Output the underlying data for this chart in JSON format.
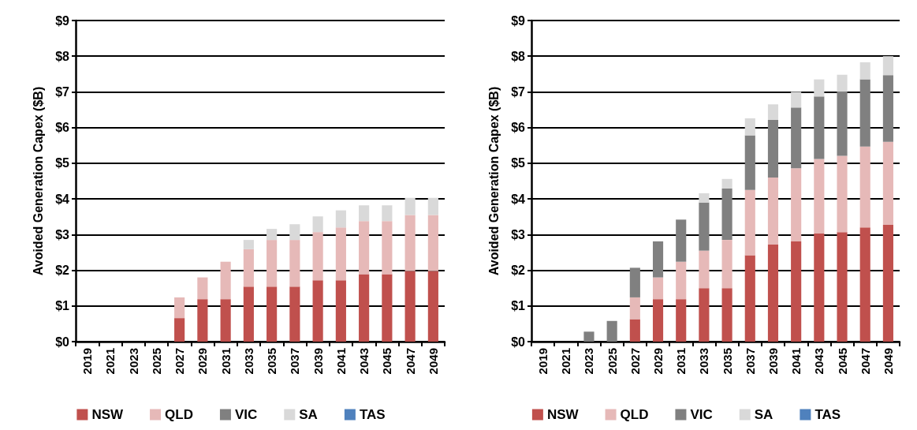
{
  "chart_data": [
    {
      "type": "bar",
      "stacked": true,
      "ylabel": "Avoided Generation Capex ($B)",
      "categories": [
        "2019",
        "2021",
        "2023",
        "2025",
        "2027",
        "2029",
        "2031",
        "2033",
        "2035",
        "2037",
        "2039",
        "2041",
        "2043",
        "2045",
        "2047",
        "2049"
      ],
      "series": [
        {
          "name": "NSW",
          "color": "#c0504d",
          "values": [
            0,
            0,
            0,
            0,
            0.66,
            1.19,
            1.19,
            1.54,
            1.54,
            1.54,
            1.72,
            1.72,
            1.89,
            1.89,
            1.98,
            1.98
          ]
        },
        {
          "name": "QLD",
          "color": "#e6b9b8",
          "values": [
            0,
            0,
            0,
            0,
            0.58,
            0.61,
            1.05,
            1.05,
            1.31,
            1.31,
            1.35,
            1.48,
            1.49,
            1.49,
            1.57,
            1.57
          ]
        },
        {
          "name": "VIC",
          "color": "#808080",
          "values": [
            0,
            0,
            0,
            0,
            0,
            0,
            0,
            0,
            0,
            0,
            0,
            0,
            0,
            0,
            0,
            0
          ]
        },
        {
          "name": "SA",
          "color": "#d9d9d9",
          "values": [
            0,
            0,
            0,
            0,
            0,
            0,
            0,
            0.26,
            0.31,
            0.44,
            0.44,
            0.48,
            0.44,
            0.44,
            0.48,
            0.48
          ]
        },
        {
          "name": "TAS",
          "color": "#4f81bd",
          "values": [
            0,
            0,
            0,
            0,
            0,
            0,
            0,
            0,
            0,
            0,
            0,
            0,
            0,
            0,
            0,
            0
          ]
        }
      ],
      "ylim": [
        0,
        9
      ],
      "yticks": [
        {
          "value": 0,
          "label": "$0"
        },
        {
          "value": 1,
          "label": "$1"
        },
        {
          "value": 2,
          "label": "$2"
        },
        {
          "value": 3,
          "label": "$3"
        },
        {
          "value": 4,
          "label": "$4"
        },
        {
          "value": 5,
          "label": "$5"
        },
        {
          "value": 6,
          "label": "$6"
        },
        {
          "value": 7,
          "label": "$7"
        },
        {
          "value": 8,
          "label": "$8"
        },
        {
          "value": 9,
          "label": "$9"
        }
      ],
      "grid": "y",
      "legend": "bottom"
    },
    {
      "type": "bar",
      "stacked": true,
      "ylabel": "Avoided Generation Capex ($B)",
      "categories": [
        "2019",
        "2021",
        "2023",
        "2025",
        "2027",
        "2029",
        "2031",
        "2033",
        "2035",
        "2037",
        "2039",
        "2041",
        "2043",
        "2045",
        "2047",
        "2049"
      ],
      "series": [
        {
          "name": "NSW",
          "color": "#c0504d",
          "values": [
            0,
            0,
            0,
            0,
            0.63,
            1.19,
            1.19,
            1.5,
            1.5,
            2.42,
            2.72,
            2.81,
            3.03,
            3.07,
            3.2,
            3.27
          ]
        },
        {
          "name": "QLD",
          "color": "#e6b9b8",
          "values": [
            0,
            0,
            0,
            0,
            0.61,
            0.61,
            1.05,
            1.05,
            1.35,
            1.83,
            1.88,
            2.05,
            2.09,
            2.14,
            2.27,
            2.33
          ]
        },
        {
          "name": "VIC",
          "color": "#808080",
          "values": [
            0,
            0,
            0.28,
            0.58,
            0.83,
            1.01,
            1.18,
            1.35,
            1.44,
            1.53,
            1.62,
            1.7,
            1.75,
            1.79,
            1.88,
            1.87
          ]
        },
        {
          "name": "SA",
          "color": "#d9d9d9",
          "values": [
            0,
            0,
            0,
            0,
            0,
            0,
            0,
            0.26,
            0.27,
            0.48,
            0.43,
            0.44,
            0.48,
            0.48,
            0.48,
            0.53
          ]
        },
        {
          "name": "TAS",
          "color": "#4f81bd",
          "values": [
            0,
            0,
            0,
            0,
            0,
            0,
            0,
            0,
            0,
            0,
            0,
            0,
            0,
            0,
            0,
            0
          ]
        }
      ],
      "ylim": [
        0,
        9
      ],
      "yticks": [
        {
          "value": 0,
          "label": "$0"
        },
        {
          "value": 1,
          "label": "$1"
        },
        {
          "value": 2,
          "label": "$2"
        },
        {
          "value": 3,
          "label": "$3"
        },
        {
          "value": 4,
          "label": "$4"
        },
        {
          "value": 5,
          "label": "$5"
        },
        {
          "value": 6,
          "label": "$6"
        },
        {
          "value": 7,
          "label": "$7"
        },
        {
          "value": 8,
          "label": "$8"
        },
        {
          "value": 9,
          "label": "$9"
        }
      ],
      "grid": "y",
      "legend": "bottom"
    }
  ]
}
